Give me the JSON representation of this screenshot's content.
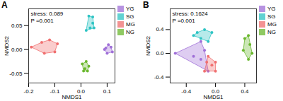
{
  "chart_data": [
    {
      "type": "scatter",
      "title": "A",
      "x_label": "NMDS1",
      "y_label": "NMDS2",
      "annotations": [
        "stress: 0.089",
        "P =0.001"
      ],
      "xlim": [
        -0.2,
        0.13
      ],
      "xticks": [
        -0.2,
        -0.1,
        {
          "value": 0,
          "label": "0.0"
        },
        0.1
      ],
      "ylim": [
        -0.07,
        0.085
      ],
      "yticks": [
        -0.05,
        {
          "value": 0,
          "label": "0.00"
        },
        0.05
      ],
      "legend": "right",
      "series": [
        {
          "name": "YG",
          "color": "#a070d8",
          "values": [
            [
              0.09,
              0.0
            ],
            [
              0.105,
              0.01
            ],
            [
              0.115,
              0.005
            ],
            [
              0.12,
              -0.005
            ],
            [
              0.1,
              -0.008
            ],
            [
              0.095,
              0.003
            ]
          ]
        },
        {
          "name": "SG",
          "color": "#2ec4c4",
          "values": [
            [
              0.03,
              0.07
            ],
            [
              0.045,
              0.068
            ],
            [
              0.02,
              0.04
            ],
            [
              0.035,
              0.045
            ],
            [
              0.05,
              0.045
            ],
            [
              0.045,
              0.055
            ]
          ]
        },
        {
          "name": "MG",
          "color": "#f07070",
          "values": [
            [
              -0.19,
              0.005
            ],
            [
              -0.15,
              0.015
            ],
            [
              -0.12,
              0.02
            ],
            [
              -0.09,
              0.012
            ],
            [
              -0.1,
              -0.005
            ],
            [
              -0.14,
              -0.008
            ]
          ]
        },
        {
          "name": "NG",
          "color": "#6ab82e",
          "values": [
            [
              0.005,
              -0.03
            ],
            [
              0.02,
              -0.025
            ],
            [
              0.03,
              -0.035
            ],
            [
              0.025,
              -0.045
            ],
            [
              0.01,
              -0.045
            ],
            [
              0.015,
              -0.04
            ]
          ]
        }
      ]
    },
    {
      "type": "scatter",
      "title": "B",
      "x_label": "NMDS1",
      "y_label": "NMDS2",
      "annotations": [
        "stress: 0.1624",
        "P =0.001"
      ],
      "xlim": [
        -0.62,
        0.56
      ],
      "xticks": [
        -0.4,
        {
          "value": 0,
          "label": "0.0"
        },
        0.4
      ],
      "ylim": [
        -0.5,
        0.75
      ],
      "yticks": [
        -0.4,
        {
          "value": 0,
          "label": "0.0"
        },
        0.4
      ],
      "legend": "right",
      "series": [
        {
          "name": "YG",
          "color": "#a070d8",
          "values": [
            [
              -0.55,
              0.0
            ],
            [
              -0.2,
              0.2
            ],
            [
              -0.1,
              -0.3
            ],
            [
              -0.3,
              -0.05
            ],
            [
              -0.2,
              -0.1
            ],
            [
              -0.15,
              0.05
            ]
          ]
        },
        {
          "name": "SG",
          "color": "#2ec4c4",
          "values": [
            [
              -0.3,
              0.3
            ],
            [
              -0.15,
              0.4
            ],
            [
              -0.05,
              0.35
            ],
            [
              -0.1,
              0.2
            ],
            [
              -0.2,
              0.25
            ],
            [
              -0.25,
              0.35
            ]
          ]
        },
        {
          "name": "MG",
          "color": "#f07070",
          "values": [
            [
              -0.1,
              -0.05
            ],
            [
              0.0,
              -0.15
            ],
            [
              0.0,
              -0.3
            ],
            [
              -0.15,
              -0.3
            ],
            [
              -0.05,
              -0.2
            ],
            [
              -0.12,
              -0.15
            ]
          ]
        },
        {
          "name": "NG",
          "color": "#6ab82e",
          "values": [
            [
              0.4,
              0.25
            ],
            [
              0.45,
              0.3
            ],
            [
              0.5,
              0.0
            ],
            [
              0.45,
              -0.1
            ],
            [
              0.38,
              0.05
            ],
            [
              0.47,
              0.15
            ]
          ]
        }
      ]
    }
  ]
}
